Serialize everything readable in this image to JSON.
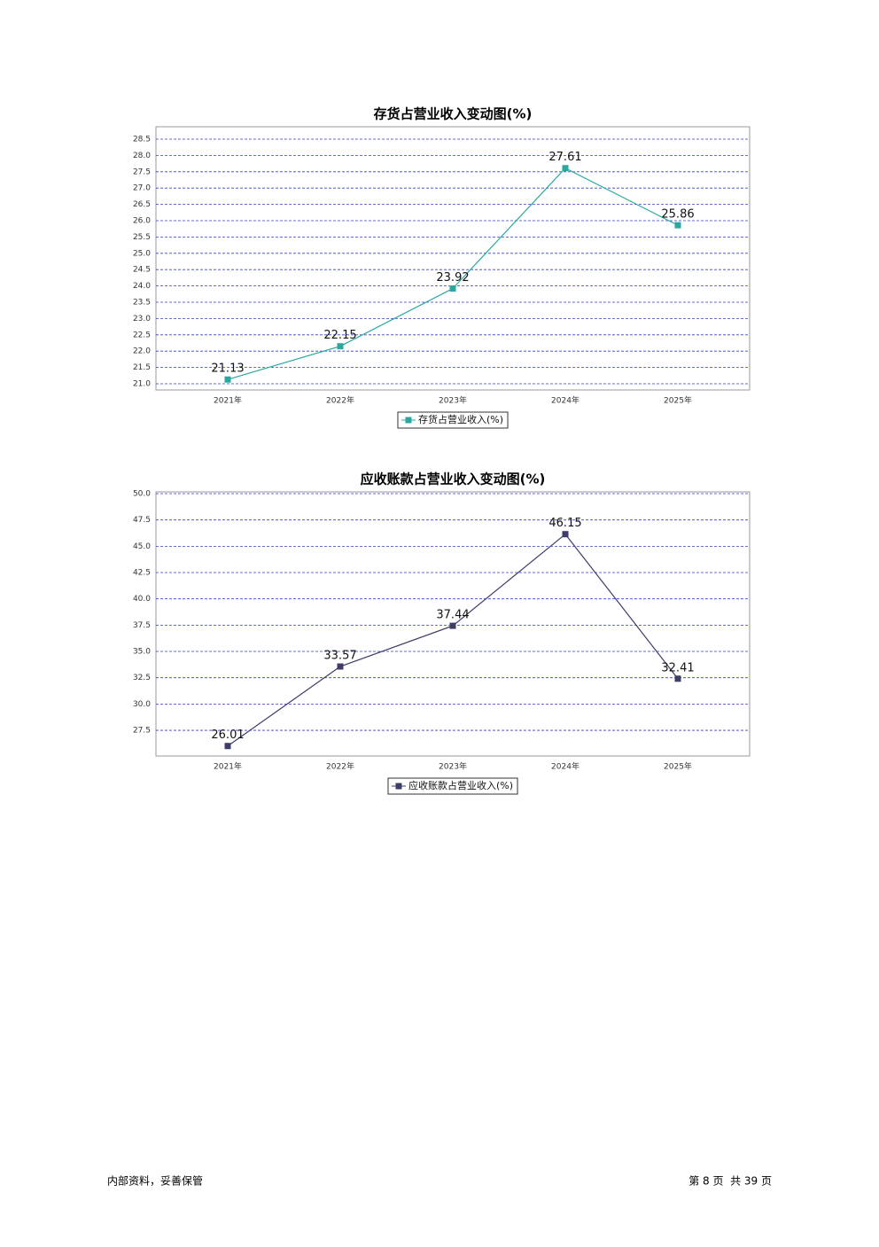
{
  "chart_data": [
    {
      "type": "line",
      "title": "存货占营业收入变动图(%)",
      "categories": [
        "2021年",
        "2022年",
        "2023年",
        "2024年",
        "2025年"
      ],
      "series": [
        {
          "name": "存货占营业收入(%)",
          "color": "#2aa8a0",
          "values": [
            21.13,
            22.15,
            23.92,
            27.61,
            25.86
          ]
        }
      ],
      "ylim": [
        20.81,
        28.88
      ],
      "yticks": [
        {
          "value": 21,
          "label": "21.0"
        },
        21.5,
        {
          "value": 22,
          "label": "22.0"
        },
        22.5,
        {
          "value": 23,
          "label": "23.0"
        },
        23.5,
        {
          "value": 24,
          "label": "24.0"
        },
        24.5,
        {
          "value": 25,
          "label": "25.0"
        },
        25.5,
        {
          "value": 26,
          "label": "26.0"
        },
        26.5,
        {
          "value": 27,
          "label": "27.0"
        },
        27.5,
        {
          "value": 28,
          "label": "28.0"
        },
        28.5
      ],
      "grid": true,
      "legend": "bottom"
    },
    {
      "type": "line",
      "title": "应收账款占营业收入变动图(%)",
      "categories": [
        "2021年",
        "2022年",
        "2023年",
        "2024年",
        "2025年"
      ],
      "series": [
        {
          "name": "应收账款占营业收入(%)",
          "color": "#3d3d6b",
          "values": [
            26.01,
            33.57,
            37.44,
            46.15,
            32.41
          ]
        }
      ],
      "ylim": [
        25.06,
        50.17
      ],
      "yticks": [
        27.5,
        {
          "value": 30,
          "label": "30.0"
        },
        32.5,
        {
          "value": 35,
          "label": "35.0"
        },
        37.5,
        {
          "value": 40,
          "label": "40.0"
        },
        42.5,
        {
          "value": 45,
          "label": "45.0"
        },
        47.5,
        {
          "value": 50,
          "label": "50.0"
        }
      ],
      "grid": true,
      "legend": "bottom"
    }
  ],
  "footer": {
    "left": "内部资料，妥善保管",
    "right": "第 8 页  共 39 页"
  }
}
